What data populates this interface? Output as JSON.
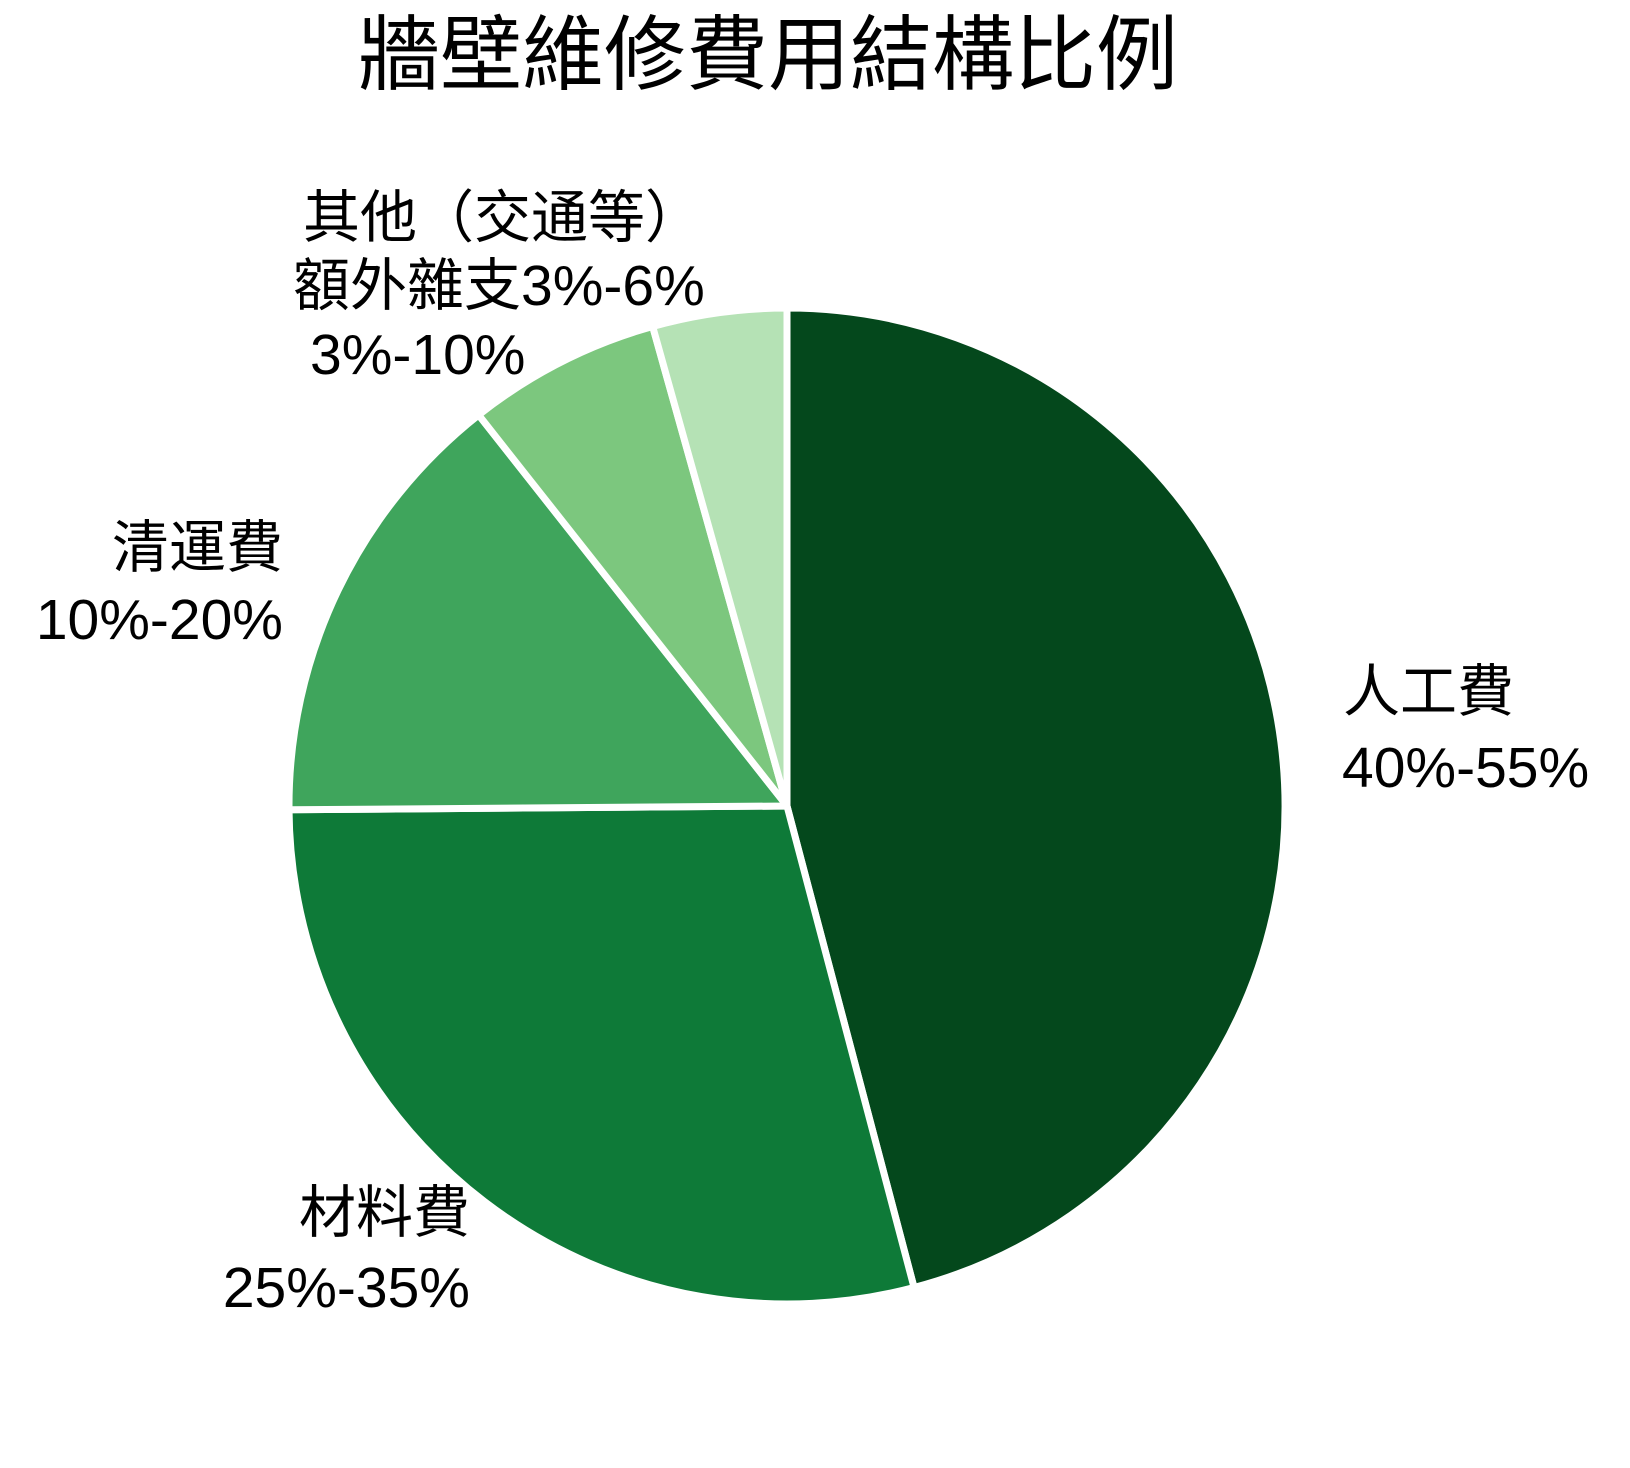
{
  "page": {
    "background": "#ffffff"
  },
  "title": "牆壁維修費用結構比例",
  "chart_data": {
    "type": "pie",
    "title": "牆壁維修費用結構比例",
    "start_angle_deg": 0,
    "direction": "clockwise",
    "legend_position": "none",
    "label_style": "outside-text",
    "separator_color": "#ffffff",
    "slices": [
      {
        "id": "labor",
        "label": "人工費",
        "range_text": "40%-55%",
        "value": 47.5,
        "color": "#04481c"
      },
      {
        "id": "material",
        "label": "材料費",
        "range_text": "25%-35%",
        "value": 30,
        "color": "#0e7a38"
      },
      {
        "id": "hauling",
        "label": "清運費",
        "range_text": "10%-20%",
        "value": 15,
        "color": "#3fa55c"
      },
      {
        "id": "other",
        "label": "其他（交通等）",
        "range_text": "3%-10%",
        "value": 6.5,
        "color": "#7cc77e"
      },
      {
        "id": "misc",
        "label": "額外雜支",
        "range_text": "3%-6%",
        "value": 4.5,
        "color": "#b5e2b5"
      }
    ]
  },
  "callouts": {
    "labor_line1": "人工費",
    "labor_line2": "40%-55%",
    "material_line1": "材料費",
    "material_line2": "25%-35%",
    "hauling_line1": "清運費",
    "hauling_line2": "10%-20%",
    "other_line1": "其他（交通等）",
    "misc_line": "額外雜支3%-6%",
    "other_line2": "3%-10%"
  }
}
